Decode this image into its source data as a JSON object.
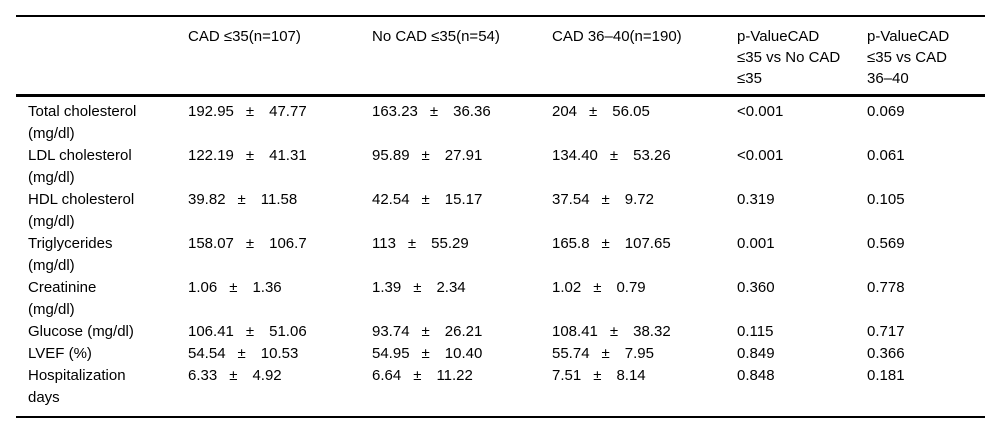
{
  "table": {
    "pm_symbol": "±",
    "headers": {
      "group": "",
      "cad_le35": "CAD ≤35(n=107)",
      "no_cad_le35": "No CAD ≤35(n=54)",
      "cad_36_40": "CAD 36–40(n=190)",
      "pvalue_cad_vs_nocad": "p-ValueCAD\n≤35 vs No CAD\n≤35",
      "pvalue_cad_vs_cad3640": "p-ValueCAD\n≤35 vs CAD\n36–40"
    },
    "rows": [
      {
        "label": "Total cholesterol\n(mg/dl)",
        "c1": {
          "mean": "192.95",
          "sd": "47.77"
        },
        "c2": {
          "mean": "163.23",
          "sd": "36.36"
        },
        "c3": {
          "mean": "204",
          "sd": "56.05"
        },
        "p1": "<0.001",
        "p2": "0.069"
      },
      {
        "label": "LDL cholesterol\n(mg/dl)",
        "c1": {
          "mean": "122.19",
          "sd": "41.31"
        },
        "c2": {
          "mean": "95.89",
          "sd": "27.91"
        },
        "c3": {
          "mean": "134.40",
          "sd": "53.26"
        },
        "p1": "<0.001",
        "p2": "0.061"
      },
      {
        "label": "HDL cholesterol\n(mg/dl)",
        "c1": {
          "mean": "39.82",
          "sd": "11.58"
        },
        "c2": {
          "mean": "42.54",
          "sd": "15.17"
        },
        "c3": {
          "mean": "37.54",
          "sd": "9.72"
        },
        "p1": "0.319",
        "p2": "0.105"
      },
      {
        "label": "Triglycerides\n(mg/dl)",
        "c1": {
          "mean": "158.07",
          "sd": "106.7"
        },
        "c2": {
          "mean": "113",
          "sd": "55.29"
        },
        "c3": {
          "mean": "165.8",
          "sd": "107.65"
        },
        "p1": "0.001",
        "p2": "0.569"
      },
      {
        "label": "Creatinine\n(mg/dl)",
        "c1": {
          "mean": "1.06",
          "sd": "1.36"
        },
        "c2": {
          "mean": "1.39",
          "sd": "2.34"
        },
        "c3": {
          "mean": "1.02",
          "sd": "0.79"
        },
        "p1": "0.360",
        "p2": "0.778"
      },
      {
        "label": "Glucose (mg/dl)",
        "c1": {
          "mean": "106.41",
          "sd": "51.06"
        },
        "c2": {
          "mean": "93.74",
          "sd": "26.21"
        },
        "c3": {
          "mean": "108.41",
          "sd": "38.32"
        },
        "p1": "0.115",
        "p2": "0.717"
      },
      {
        "label": "LVEF (%)",
        "c1": {
          "mean": "54.54",
          "sd": "10.53"
        },
        "c2": {
          "mean": "54.95",
          "sd": "10.40"
        },
        "c3": {
          "mean": "55.74",
          "sd": "7.95"
        },
        "p1": "0.849",
        "p2": "0.366"
      },
      {
        "label": "Hospitalization\ndays",
        "c1": {
          "mean": "6.33",
          "sd": "4.92"
        },
        "c2": {
          "mean": "6.64",
          "sd": "11.22"
        },
        "c3": {
          "mean": "7.51",
          "sd": "8.14"
        },
        "p1": "0.848",
        "p2": "0.181"
      }
    ]
  }
}
